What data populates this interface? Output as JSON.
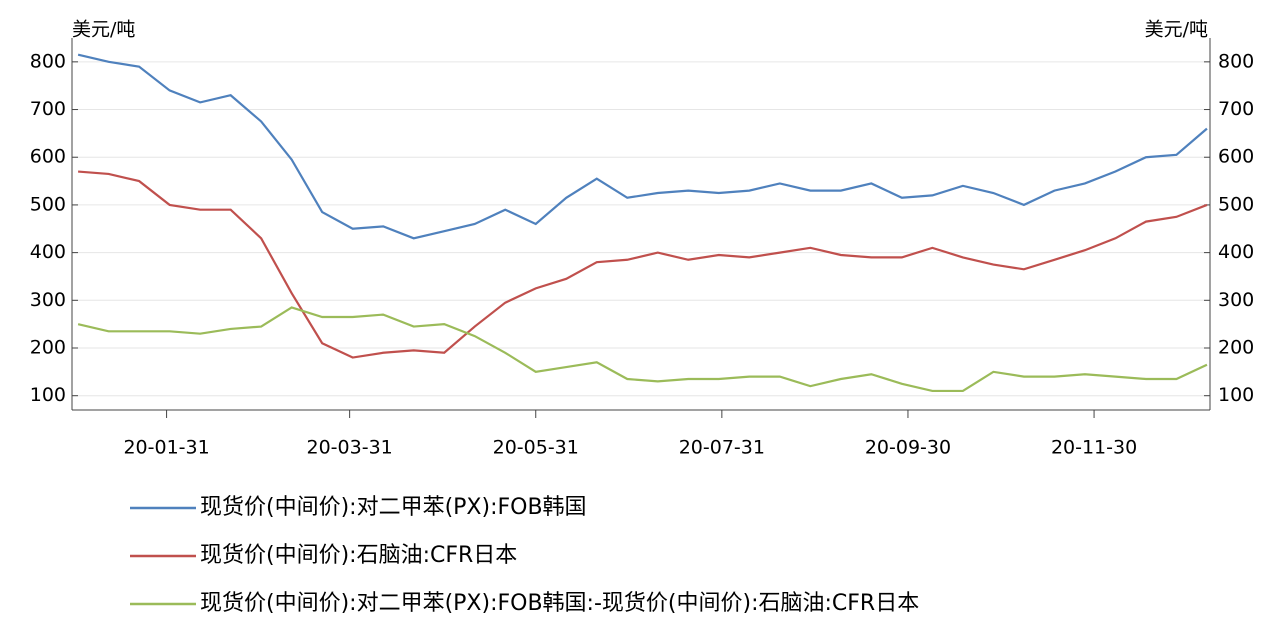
{
  "chart_data": {
    "type": "line",
    "y_unit_left": "美元/吨",
    "y_unit_right": "美元/吨",
    "x": [
      "20-01-02",
      "20-01-12",
      "20-01-22",
      "20-02-01",
      "20-02-11",
      "20-02-21",
      "20-03-02",
      "20-03-12",
      "20-03-22",
      "20-04-01",
      "20-04-11",
      "20-04-21",
      "20-05-01",
      "20-05-11",
      "20-05-21",
      "20-05-31",
      "20-06-10",
      "20-06-20",
      "20-06-30",
      "20-07-10",
      "20-07-20",
      "20-07-30",
      "20-08-09",
      "20-08-19",
      "20-08-29",
      "20-09-08",
      "20-09-18",
      "20-09-28",
      "20-10-08",
      "20-10-18",
      "20-10-28",
      "20-11-07",
      "20-11-17",
      "20-11-27",
      "20-12-07",
      "20-12-17",
      "20-12-27",
      "21-01-06"
    ],
    "series": [
      {
        "name": "现货价(中间价):对二甲苯(PX):FOB韩国",
        "color": "#4f81bd",
        "values": [
          815,
          800,
          790,
          740,
          715,
          730,
          675,
          595,
          485,
          450,
          455,
          430,
          445,
          460,
          490,
          460,
          515,
          555,
          515,
          525,
          530,
          525,
          530,
          545,
          530,
          530,
          545,
          515,
          520,
          540,
          525,
          500,
          530,
          545,
          570,
          600,
          605,
          660
        ]
      },
      {
        "name": "现货价(中间价):石脑油:CFR日本",
        "color": "#c0504d",
        "values": [
          570,
          565,
          550,
          500,
          490,
          490,
          430,
          315,
          210,
          180,
          190,
          195,
          190,
          245,
          295,
          325,
          345,
          380,
          385,
          400,
          385,
          395,
          390,
          400,
          410,
          395,
          390,
          390,
          410,
          390,
          375,
          365,
          385,
          405,
          430,
          465,
          475,
          500
        ]
      },
      {
        "name": "现货价(中间价):对二甲苯(PX):FOB韩国:-现货价(中间价):石脑油:CFR日本",
        "color": "#9bbb59",
        "values": [
          250,
          235,
          235,
          235,
          230,
          240,
          245,
          285,
          265,
          265,
          270,
          245,
          250,
          225,
          190,
          150,
          160,
          170,
          135,
          130,
          135,
          135,
          140,
          140,
          120,
          135,
          145,
          125,
          110,
          110,
          150,
          140,
          140,
          145,
          140,
          135,
          135,
          165
        ]
      }
    ],
    "xlim": [
      "19-12-31",
      "21-01-07"
    ],
    "xticks": [
      "20-01-31",
      "20-03-31",
      "20-05-31",
      "20-07-31",
      "20-09-30",
      "20-11-30"
    ],
    "ylim": [
      70,
      850
    ],
    "yticks": [
      100,
      200,
      300,
      400,
      500,
      600,
      700,
      800
    ],
    "y2lim": [
      70,
      850
    ],
    "y2ticks": [
      100,
      200,
      300,
      400,
      500,
      600,
      700,
      800
    ],
    "grid": true
  }
}
